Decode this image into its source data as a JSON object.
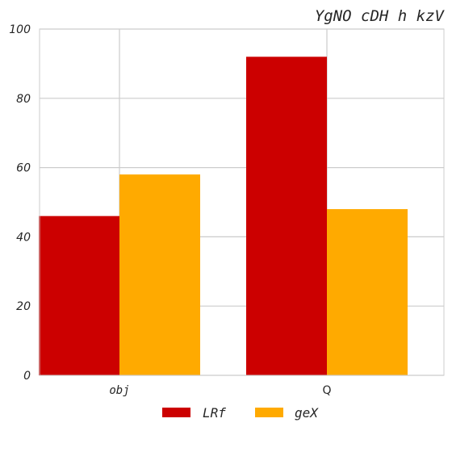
{
  "chart_data": {
    "type": "bar",
    "title": "YgNO cDH h kzV",
    "xlabel": "",
    "ylabel": "",
    "categories": [
      "obj",
      "Q"
    ],
    "series": [
      {
        "name": "LRf",
        "values": [
          46,
          92
        ],
        "color": "#cc0000"
      },
      {
        "name": "geX",
        "values": [
          58,
          48
        ],
        "color": "#ffaa00"
      }
    ],
    "ylim": [
      0,
      100
    ],
    "yticks": [
      0,
      20,
      40,
      60,
      80,
      100
    ],
    "grid": true,
    "legend_position": "bottom"
  }
}
